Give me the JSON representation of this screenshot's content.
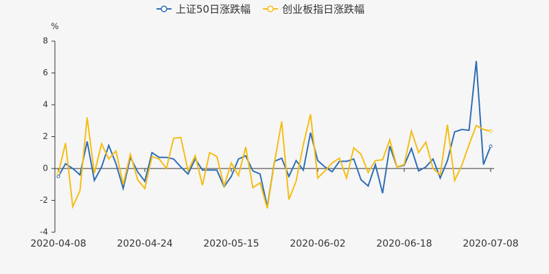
{
  "chart_data": {
    "type": "line",
    "y_label": "%",
    "categories": [
      "2020-04-08",
      null,
      null,
      null,
      null,
      null,
      null,
      null,
      null,
      null,
      null,
      null,
      "2020-04-24",
      null,
      null,
      null,
      null,
      null,
      null,
      null,
      null,
      null,
      null,
      null,
      "2020-05-15",
      null,
      null,
      null,
      null,
      null,
      null,
      null,
      null,
      null,
      null,
      null,
      "2020-06-02",
      null,
      null,
      null,
      null,
      null,
      null,
      null,
      null,
      null,
      null,
      null,
      "2020-06-18",
      null,
      null,
      null,
      null,
      null,
      null,
      null,
      null,
      null,
      null,
      null,
      "2020-07-08"
    ],
    "series": [
      {
        "name": "上证50日涨跌幅",
        "color": "#2e6db4",
        "values": [
          -0.5,
          0.3,
          0.0,
          -0.4,
          1.7,
          -0.75,
          0.1,
          1.45,
          0.3,
          -1.25,
          0.7,
          -0.2,
          -0.8,
          1.0,
          0.7,
          0.7,
          0.6,
          0.1,
          -0.35,
          0.6,
          -0.1,
          -0.1,
          -0.1,
          -1.15,
          -0.5,
          0.6,
          0.8,
          -0.15,
          -0.35,
          -2.4,
          0.45,
          0.65,
          -0.5,
          0.5,
          -0.1,
          2.25,
          0.5,
          0.1,
          -0.2,
          0.45,
          0.45,
          0.6,
          -0.7,
          -1.1,
          0.25,
          -1.55,
          1.4,
          0.1,
          0.2,
          1.25,
          -0.15,
          0.1,
          0.6,
          -0.6,
          0.5,
          2.3,
          2.45,
          2.4,
          6.75,
          0.25,
          1.4
        ]
      },
      {
        "name": "创业板指日涨跌幅",
        "color": "#f5bd12",
        "values": [
          -0.3,
          1.6,
          -2.4,
          -1.4,
          3.2,
          -0.3,
          1.55,
          0.6,
          1.1,
          -1.0,
          0.9,
          -0.7,
          -1.25,
          0.75,
          0.6,
          0.0,
          1.9,
          1.95,
          -0.15,
          0.8,
          -1.05,
          1.0,
          0.75,
          -1.1,
          0.35,
          -0.45,
          1.35,
          -1.2,
          -0.9,
          -2.5,
          0.4,
          2.95,
          -1.95,
          -0.8,
          1.5,
          3.4,
          -0.6,
          -0.15,
          0.35,
          0.65,
          -0.6,
          1.3,
          0.9,
          -0.25,
          0.5,
          0.55,
          1.8,
          0.1,
          0.25,
          2.35,
          1.0,
          1.65,
          0.0,
          -0.4,
          2.75,
          -0.75,
          0.2,
          1.5,
          2.7,
          2.45,
          2.35
        ]
      }
    ],
    "ylim": [
      -4,
      8
    ],
    "yticks": [
      -4,
      -2,
      0,
      2,
      4,
      6,
      8
    ]
  }
}
